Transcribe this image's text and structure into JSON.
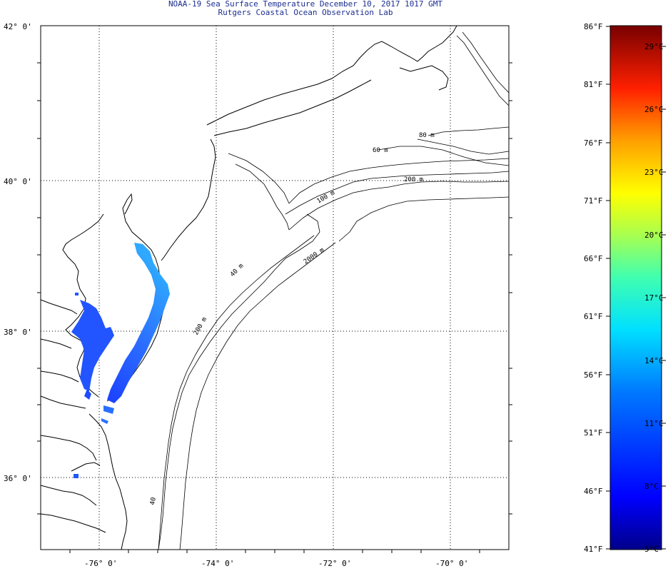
{
  "title": {
    "line1": "NOAA-19 Sea Surface Temperature December 10, 2017 1017 GMT",
    "line2": "Rutgers Coastal Ocean Observation Lab"
  },
  "map": {
    "lat_labels": [
      "42° 0'",
      "40° 0'",
      "38° 0'",
      "36° 0'"
    ],
    "lon_labels": [
      "-76° 0'",
      "-74° 0'",
      "-72° 0'",
      "-70° 0'"
    ],
    "contour_labels": [
      "80 m",
      "60 m",
      "200 m",
      "100 m",
      "2000 m",
      "40 m",
      "200 m",
      "40"
    ]
  },
  "colorbar": {
    "fahrenheit": [
      "86°F",
      "81°F",
      "76°F",
      "71°F",
      "66°F",
      "61°F",
      "56°F",
      "51°F",
      "46°F",
      "41°F"
    ],
    "celsius": [
      "29°C",
      "26°C",
      "23°C",
      "20°C",
      "17°C",
      "14°C",
      "11°C",
      "8°C",
      "5°C"
    ],
    "colors": [
      "#00008a",
      "#0000ff",
      "#0060ff",
      "#00c8ff",
      "#40ffc0",
      "#a0ff60",
      "#ffff00",
      "#ffa000",
      "#ff3000",
      "#c00000",
      "#7a0000"
    ]
  }
}
